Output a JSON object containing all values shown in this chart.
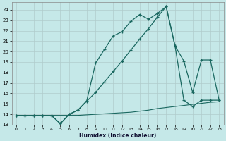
{
  "xlabel": "Humidex (Indice chaleur)",
  "background_color": "#c5e8e8",
  "grid_color": "#b0cccc",
  "line_color": "#1a6860",
  "xlim": [
    -0.5,
    23.5
  ],
  "ylim": [
    13.0,
    24.7
  ],
  "xticks": [
    0,
    1,
    2,
    3,
    4,
    5,
    6,
    7,
    8,
    9,
    10,
    11,
    12,
    13,
    14,
    15,
    16,
    17,
    18,
    19,
    20,
    21,
    22,
    23
  ],
  "yticks": [
    13,
    14,
    15,
    16,
    17,
    18,
    19,
    20,
    21,
    22,
    23,
    24
  ],
  "line1_x": [
    0,
    1,
    2,
    3,
    4,
    5,
    6,
    7,
    8,
    9,
    10,
    11,
    12,
    13,
    14,
    15,
    16,
    17,
    18,
    19,
    20,
    21,
    22,
    23
  ],
  "line1_y": [
    13.9,
    13.9,
    13.9,
    13.9,
    13.9,
    13.9,
    13.9,
    13.9,
    13.95,
    14.0,
    14.05,
    14.1,
    14.15,
    14.2,
    14.3,
    14.4,
    14.55,
    14.65,
    14.75,
    14.85,
    14.95,
    15.05,
    15.15,
    15.2
  ],
  "line2_x": [
    0,
    1,
    2,
    3,
    4,
    5,
    6,
    7,
    8,
    9,
    10,
    11,
    12,
    13,
    14,
    15,
    16,
    17,
    18,
    19,
    20,
    21,
    22,
    23
  ],
  "line2_y": [
    13.9,
    13.9,
    13.9,
    13.9,
    13.9,
    13.1,
    14.0,
    14.4,
    15.3,
    18.9,
    20.2,
    21.5,
    21.9,
    22.9,
    23.55,
    23.1,
    23.65,
    24.3,
    20.55,
    19.1,
    16.1,
    19.2,
    19.2,
    15.35
  ],
  "line3_x": [
    0,
    1,
    2,
    3,
    4,
    5,
    6,
    7,
    8,
    9,
    10,
    11,
    12,
    13,
    14,
    15,
    16,
    17,
    18,
    19,
    20,
    21,
    22,
    23
  ],
  "line3_y": [
    13.9,
    13.9,
    13.9,
    13.9,
    13.9,
    13.1,
    14.0,
    14.4,
    15.25,
    16.1,
    17.1,
    18.1,
    19.1,
    20.15,
    21.2,
    22.2,
    23.3,
    24.3,
    20.55,
    15.35,
    14.75,
    15.35,
    15.35,
    15.35
  ]
}
